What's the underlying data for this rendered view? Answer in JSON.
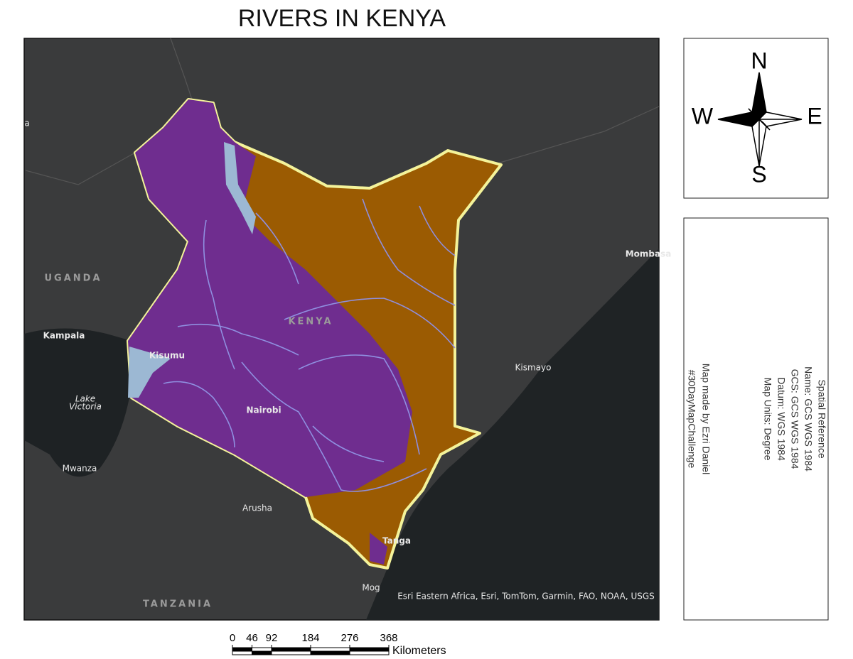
{
  "title": "RIVERS IN KENYA",
  "map": {
    "places": {
      "country_labels": [
        "UGANDA",
        "KENYA",
        "TANZANIA"
      ],
      "city_labels": [
        "Kampala",
        "Kisumu",
        "Nairobi",
        "Mwanza",
        "Arusha",
        "Kismayo",
        "Mombasa",
        "Tanga",
        "Mog",
        "a"
      ],
      "water_labels": [
        "Lake",
        "Victoria"
      ]
    },
    "attribution": "Esri Eastern Africa, Esri, TomTom, Garmin, FAO, NOAA, USGS"
  },
  "compass": {
    "north": "N",
    "south": "S",
    "east": "E",
    "west": "W"
  },
  "info_panel": {
    "spatial_reference": [
      "Spatial Reference",
      "Name: GCS WGS 1984",
      "GCS: GCS WGS 1984",
      "Datum: WGS 1984",
      "Map Units: Degree"
    ],
    "credits": [
      "Map made by Ezri Daniel",
      "#30DayMapChallenge"
    ]
  },
  "scale_bar": {
    "ticks": [
      0,
      46,
      92,
      184,
      276,
      368
    ],
    "unit": "Kilometers"
  }
}
